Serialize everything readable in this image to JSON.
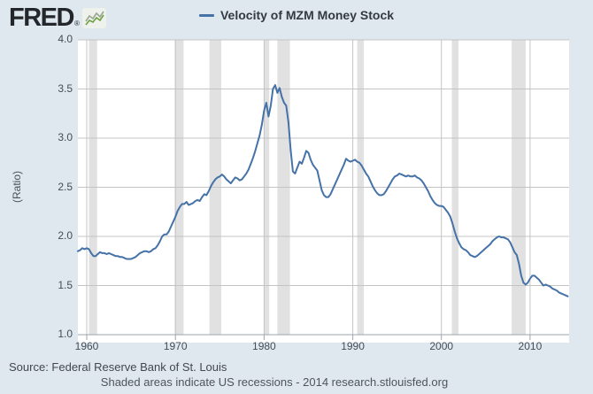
{
  "header": {
    "logo_text": "FRED",
    "registered_mark": "®"
  },
  "footer": {
    "source": "Source: Federal Reserve Bank of St. Louis",
    "note": "Shaded areas indicate US recessions - 2014 research.stlouisfed.org"
  },
  "chart_data": {
    "type": "line",
    "title": "Velocity of MZM Money Stock",
    "ylabel": "(Ratio)",
    "xlabel": "",
    "xlim": [
      1959.0,
      2014.4
    ],
    "ylim": [
      1.0,
      4.0
    ],
    "x_ticks": [
      1960,
      1970,
      1980,
      1990,
      2000,
      2010
    ],
    "y_ticks": [
      1.0,
      1.5,
      2.0,
      2.5,
      3.0,
      3.5,
      4.0
    ],
    "grid": true,
    "legend_position": "top",
    "colors": {
      "line": "#4572a7",
      "gridline": "#c4c4c4",
      "recession_band": "#e1e1e1",
      "axis": "#9aa5ae",
      "plot_background": "#ffffff",
      "page_background": "#dfe7ef"
    },
    "recessions": [
      [
        1960.25,
        1961.17
      ],
      [
        1969.92,
        1970.92
      ],
      [
        1973.83,
        1975.17
      ],
      [
        1980.0,
        1980.58
      ],
      [
        1981.5,
        1982.92
      ],
      [
        1990.5,
        1991.25
      ],
      [
        2001.17,
        2001.92
      ],
      [
        2007.92,
        2009.5
      ]
    ],
    "series": [
      {
        "name": "Velocity of MZM Money Stock",
        "points": [
          [
            1959.0,
            1.85
          ],
          [
            1959.25,
            1.86
          ],
          [
            1959.5,
            1.88
          ],
          [
            1959.75,
            1.87
          ],
          [
            1960.0,
            1.88
          ],
          [
            1960.25,
            1.87
          ],
          [
            1960.5,
            1.83
          ],
          [
            1960.75,
            1.8
          ],
          [
            1961.0,
            1.8
          ],
          [
            1961.25,
            1.82
          ],
          [
            1961.5,
            1.84
          ],
          [
            1961.75,
            1.83
          ],
          [
            1962.0,
            1.83
          ],
          [
            1962.25,
            1.82
          ],
          [
            1962.5,
            1.83
          ],
          [
            1962.75,
            1.82
          ],
          [
            1963.0,
            1.81
          ],
          [
            1963.25,
            1.8
          ],
          [
            1963.5,
            1.8
          ],
          [
            1963.75,
            1.79
          ],
          [
            1964.0,
            1.79
          ],
          [
            1964.25,
            1.78
          ],
          [
            1964.5,
            1.77
          ],
          [
            1964.75,
            1.77
          ],
          [
            1965.0,
            1.77
          ],
          [
            1965.25,
            1.78
          ],
          [
            1965.5,
            1.79
          ],
          [
            1965.75,
            1.81
          ],
          [
            1966.0,
            1.83
          ],
          [
            1966.25,
            1.84
          ],
          [
            1966.5,
            1.85
          ],
          [
            1966.75,
            1.85
          ],
          [
            1967.0,
            1.84
          ],
          [
            1967.25,
            1.85
          ],
          [
            1967.5,
            1.87
          ],
          [
            1967.75,
            1.88
          ],
          [
            1968.0,
            1.91
          ],
          [
            1968.25,
            1.95
          ],
          [
            1968.5,
            2.0
          ],
          [
            1968.75,
            2.02
          ],
          [
            1969.0,
            2.02
          ],
          [
            1969.25,
            2.05
          ],
          [
            1969.5,
            2.1
          ],
          [
            1969.75,
            2.15
          ],
          [
            1970.0,
            2.2
          ],
          [
            1970.25,
            2.26
          ],
          [
            1970.5,
            2.3
          ],
          [
            1970.75,
            2.33
          ],
          [
            1971.0,
            2.33
          ],
          [
            1971.25,
            2.35
          ],
          [
            1971.5,
            2.32
          ],
          [
            1971.75,
            2.33
          ],
          [
            1972.0,
            2.34
          ],
          [
            1972.25,
            2.36
          ],
          [
            1972.5,
            2.37
          ],
          [
            1972.75,
            2.36
          ],
          [
            1973.0,
            2.4
          ],
          [
            1973.25,
            2.43
          ],
          [
            1973.5,
            2.42
          ],
          [
            1973.75,
            2.46
          ],
          [
            1974.0,
            2.51
          ],
          [
            1974.25,
            2.55
          ],
          [
            1974.5,
            2.58
          ],
          [
            1974.75,
            2.6
          ],
          [
            1975.0,
            2.61
          ],
          [
            1975.25,
            2.63
          ],
          [
            1975.5,
            2.61
          ],
          [
            1975.75,
            2.58
          ],
          [
            1976.0,
            2.56
          ],
          [
            1976.25,
            2.54
          ],
          [
            1976.5,
            2.57
          ],
          [
            1976.75,
            2.6
          ],
          [
            1977.0,
            2.59
          ],
          [
            1977.25,
            2.57
          ],
          [
            1977.5,
            2.58
          ],
          [
            1977.75,
            2.61
          ],
          [
            1978.0,
            2.64
          ],
          [
            1978.25,
            2.68
          ],
          [
            1978.5,
            2.74
          ],
          [
            1978.75,
            2.8
          ],
          [
            1979.0,
            2.87
          ],
          [
            1979.25,
            2.95
          ],
          [
            1979.5,
            3.03
          ],
          [
            1979.75,
            3.14
          ],
          [
            1980.0,
            3.28
          ],
          [
            1980.25,
            3.36
          ],
          [
            1980.5,
            3.22
          ],
          [
            1980.75,
            3.33
          ],
          [
            1981.0,
            3.5
          ],
          [
            1981.25,
            3.54
          ],
          [
            1981.5,
            3.46
          ],
          [
            1981.75,
            3.51
          ],
          [
            1982.0,
            3.42
          ],
          [
            1982.25,
            3.36
          ],
          [
            1982.5,
            3.33
          ],
          [
            1982.75,
            3.16
          ],
          [
            1983.0,
            2.88
          ],
          [
            1983.25,
            2.66
          ],
          [
            1983.5,
            2.64
          ],
          [
            1983.75,
            2.7
          ],
          [
            1984.0,
            2.76
          ],
          [
            1984.25,
            2.74
          ],
          [
            1984.5,
            2.8
          ],
          [
            1984.75,
            2.87
          ],
          [
            1985.0,
            2.85
          ],
          [
            1985.25,
            2.78
          ],
          [
            1985.5,
            2.73
          ],
          [
            1985.75,
            2.7
          ],
          [
            1986.0,
            2.67
          ],
          [
            1986.25,
            2.57
          ],
          [
            1986.5,
            2.47
          ],
          [
            1986.75,
            2.42
          ],
          [
            1987.0,
            2.4
          ],
          [
            1987.25,
            2.4
          ],
          [
            1987.5,
            2.43
          ],
          [
            1987.75,
            2.48
          ],
          [
            1988.0,
            2.53
          ],
          [
            1988.25,
            2.58
          ],
          [
            1988.5,
            2.63
          ],
          [
            1988.75,
            2.68
          ],
          [
            1989.0,
            2.73
          ],
          [
            1989.25,
            2.79
          ],
          [
            1989.5,
            2.77
          ],
          [
            1989.75,
            2.76
          ],
          [
            1990.0,
            2.77
          ],
          [
            1990.25,
            2.78
          ],
          [
            1990.5,
            2.76
          ],
          [
            1990.75,
            2.75
          ],
          [
            1991.0,
            2.72
          ],
          [
            1991.25,
            2.68
          ],
          [
            1991.5,
            2.64
          ],
          [
            1991.75,
            2.61
          ],
          [
            1992.0,
            2.56
          ],
          [
            1992.25,
            2.51
          ],
          [
            1992.5,
            2.47
          ],
          [
            1992.75,
            2.44
          ],
          [
            1993.0,
            2.42
          ],
          [
            1993.25,
            2.42
          ],
          [
            1993.5,
            2.43
          ],
          [
            1993.75,
            2.46
          ],
          [
            1994.0,
            2.5
          ],
          [
            1994.25,
            2.54
          ],
          [
            1994.5,
            2.58
          ],
          [
            1994.75,
            2.61
          ],
          [
            1995.0,
            2.62
          ],
          [
            1995.25,
            2.64
          ],
          [
            1995.5,
            2.63
          ],
          [
            1995.75,
            2.62
          ],
          [
            1996.0,
            2.61
          ],
          [
            1996.25,
            2.62
          ],
          [
            1996.5,
            2.61
          ],
          [
            1996.75,
            2.61
          ],
          [
            1997.0,
            2.62
          ],
          [
            1997.25,
            2.6
          ],
          [
            1997.5,
            2.59
          ],
          [
            1997.75,
            2.57
          ],
          [
            1998.0,
            2.54
          ],
          [
            1998.25,
            2.5
          ],
          [
            1998.5,
            2.46
          ],
          [
            1998.75,
            2.41
          ],
          [
            1999.0,
            2.37
          ],
          [
            1999.25,
            2.34
          ],
          [
            1999.5,
            2.32
          ],
          [
            1999.75,
            2.31
          ],
          [
            2000.0,
            2.31
          ],
          [
            2000.25,
            2.3
          ],
          [
            2000.5,
            2.27
          ],
          [
            2000.75,
            2.24
          ],
          [
            2001.0,
            2.2
          ],
          [
            2001.25,
            2.13
          ],
          [
            2001.5,
            2.05
          ],
          [
            2001.75,
            1.98
          ],
          [
            2002.0,
            1.93
          ],
          [
            2002.25,
            1.89
          ],
          [
            2002.5,
            1.87
          ],
          [
            2002.75,
            1.86
          ],
          [
            2003.0,
            1.84
          ],
          [
            2003.25,
            1.81
          ],
          [
            2003.5,
            1.8
          ],
          [
            2003.75,
            1.79
          ],
          [
            2004.0,
            1.8
          ],
          [
            2004.25,
            1.82
          ],
          [
            2004.5,
            1.84
          ],
          [
            2004.75,
            1.86
          ],
          [
            2005.0,
            1.88
          ],
          [
            2005.25,
            1.9
          ],
          [
            2005.5,
            1.92
          ],
          [
            2005.75,
            1.95
          ],
          [
            2006.0,
            1.97
          ],
          [
            2006.25,
            1.99
          ],
          [
            2006.5,
            2.0
          ],
          [
            2006.75,
            1.99
          ],
          [
            2007.0,
            1.99
          ],
          [
            2007.25,
            1.98
          ],
          [
            2007.5,
            1.97
          ],
          [
            2007.75,
            1.94
          ],
          [
            2008.0,
            1.89
          ],
          [
            2008.25,
            1.84
          ],
          [
            2008.5,
            1.81
          ],
          [
            2008.75,
            1.72
          ],
          [
            2009.0,
            1.6
          ],
          [
            2009.25,
            1.53
          ],
          [
            2009.5,
            1.51
          ],
          [
            2009.75,
            1.53
          ],
          [
            2010.0,
            1.57
          ],
          [
            2010.25,
            1.6
          ],
          [
            2010.5,
            1.6
          ],
          [
            2010.75,
            1.58
          ],
          [
            2011.0,
            1.56
          ],
          [
            2011.25,
            1.53
          ],
          [
            2011.5,
            1.5
          ],
          [
            2011.75,
            1.51
          ],
          [
            2012.0,
            1.5
          ],
          [
            2012.25,
            1.49
          ],
          [
            2012.5,
            1.47
          ],
          [
            2012.75,
            1.46
          ],
          [
            2013.0,
            1.45
          ],
          [
            2013.25,
            1.43
          ],
          [
            2013.5,
            1.42
          ],
          [
            2013.75,
            1.41
          ],
          [
            2014.0,
            1.4
          ],
          [
            2014.25,
            1.39
          ]
        ]
      }
    ]
  }
}
